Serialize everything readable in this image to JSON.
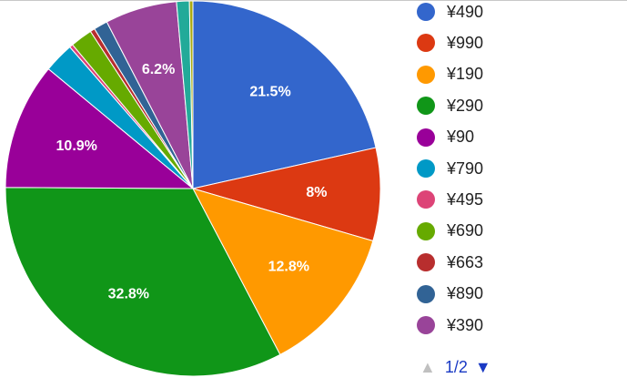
{
  "chart_data": {
    "type": "pie",
    "slices": [
      {
        "label": "¥490",
        "value": 21.5,
        "color": "#3366cc",
        "show_label": true,
        "data_label": "21.5%"
      },
      {
        "label": "¥990",
        "value": 8.0,
        "color": "#dc3912",
        "show_label": true,
        "data_label": "8%"
      },
      {
        "label": "¥190",
        "value": 12.8,
        "color": "#ff9900",
        "show_label": true,
        "data_label": "12.8%"
      },
      {
        "label": "¥290",
        "value": 32.8,
        "color": "#109618",
        "show_label": true,
        "data_label": "32.8%"
      },
      {
        "label": "¥90",
        "value": 10.9,
        "color": "#990099",
        "show_label": true,
        "data_label": "10.9%"
      },
      {
        "label": "¥790",
        "value": 2.6,
        "color": "#0099c6",
        "show_label": false,
        "data_label": ""
      },
      {
        "label": "¥495",
        "value": 0.3,
        "color": "#dd4477",
        "show_label": false,
        "data_label": ""
      },
      {
        "label": "¥690",
        "value": 1.9,
        "color": "#66aa00",
        "show_label": false,
        "data_label": ""
      },
      {
        "label": "¥663",
        "value": 0.4,
        "color": "#b82e2e",
        "show_label": false,
        "data_label": ""
      },
      {
        "label": "¥890",
        "value": 1.2,
        "color": "#316395",
        "show_label": false,
        "data_label": ""
      },
      {
        "label": "¥390",
        "value": 6.2,
        "color": "#994499",
        "show_label": true,
        "data_label": "6.2%"
      },
      {
        "label": "",
        "value": 1.1,
        "color": "#22aa99",
        "show_label": false,
        "data_label": ""
      },
      {
        "label": "",
        "value": 0.3,
        "color": "#aaaa11",
        "show_label": false,
        "data_label": ""
      }
    ],
    "legend_position": "right",
    "legend_page": "1/2"
  },
  "pager": {
    "label": "1/2",
    "prev_icon": "triangle-up-icon",
    "next_icon": "triangle-down-icon",
    "prev_glyph": "▲",
    "next_glyph": "▼"
  }
}
